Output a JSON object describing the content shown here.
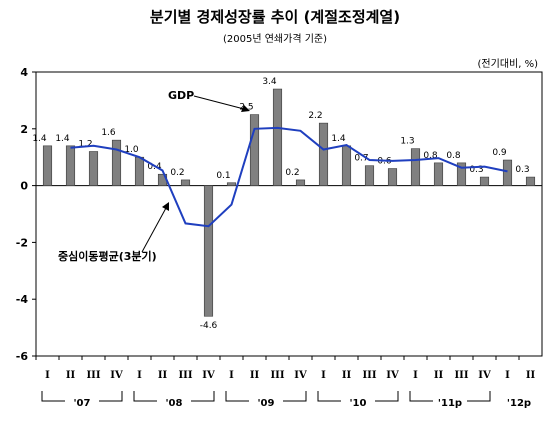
{
  "title": "분기별 경제성장률 추이 (계절조정계열)",
  "subtitle": "(2005년 연쇄가격 기준)",
  "unit": "(전기대비, %)",
  "chart_data": {
    "type": "bar",
    "categories": [
      "I",
      "II",
      "III",
      "IV",
      "I",
      "II",
      "III",
      "IV",
      "I",
      "II",
      "III",
      "IV",
      "I",
      "II",
      "III",
      "IV",
      "I",
      "II",
      "III",
      "IV",
      "I",
      "II"
    ],
    "year_groups": [
      {
        "label": "'07",
        "quarters": 4
      },
      {
        "label": "'08",
        "quarters": 4
      },
      {
        "label": "'09",
        "quarters": 4
      },
      {
        "label": "'10",
        "quarters": 4
      },
      {
        "label": "'11p",
        "quarters": 4
      },
      {
        "label": "'12p",
        "quarters": 2
      }
    ],
    "series": [
      {
        "name": "GDP",
        "type": "bar",
        "values": [
          1.4,
          1.4,
          1.2,
          1.6,
          1.0,
          0.4,
          0.2,
          -4.6,
          0.1,
          2.5,
          3.4,
          0.2,
          2.2,
          1.4,
          0.7,
          0.6,
          1.3,
          0.8,
          0.8,
          0.3,
          0.9,
          0.3
        ],
        "labels": [
          "1.4",
          "1.4",
          "1.2",
          "1.6",
          "1.0",
          "0.4",
          "0.2",
          "-4.6",
          "0.1",
          "2.5",
          "3.4",
          "0.2",
          "2.2",
          "1.4",
          "0.7",
          "0.6",
          "1.3",
          "0.8",
          "0.8",
          "0.3",
          "0.9",
          "0.3"
        ]
      },
      {
        "name": "중심이동평균(3분기)",
        "type": "line",
        "values": [
          null,
          1.33,
          1.4,
          1.27,
          1.0,
          0.53,
          -1.33,
          -1.43,
          -0.67,
          2.0,
          2.03,
          1.93,
          1.27,
          1.43,
          0.9,
          0.87,
          0.9,
          0.97,
          0.63,
          0.67,
          0.5,
          null
        ]
      }
    ],
    "annotations": [
      "GDP",
      "중심이동평균(3분기)"
    ],
    "yticks": [
      "4",
      "2",
      "0",
      "-2",
      "-4",
      "-6"
    ],
    "ylim": [
      -6,
      4
    ],
    "bar_color": "#808080",
    "line_color": "#1f3fbf"
  }
}
